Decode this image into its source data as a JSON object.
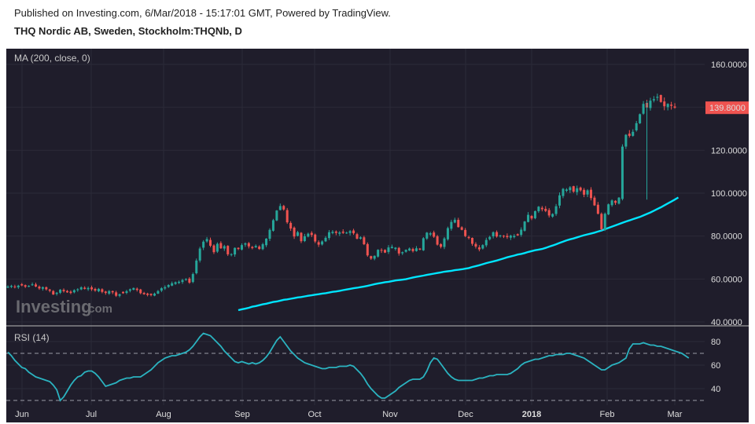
{
  "header": {
    "published": "Published on Investing.com, 6/Mar/2018 - 15:17:01 GMT, Powered by TradingView.",
    "instrument": "THQ Nordic AB, Sweden, Stockholm:THQNb, D"
  },
  "logo": {
    "brand": "Investing",
    "suffix": ".com"
  },
  "colors": {
    "background": "#1f1d2b",
    "grid": "#2b2a38",
    "up": "#26a69a",
    "down": "#ef5350",
    "ma_line": "#00e5ff",
    "rsi_line": "#2bb3c0",
    "last_price_badge": "#ef5350"
  },
  "chart_data": [
    {
      "type": "candlestick",
      "indicator_label": "MA (200, close, 0)",
      "price_axis_ticks": [
        "160.0000",
        "140.0000",
        "120.0000",
        "100.0000",
        "80.0000",
        "60.0000",
        "40.0000"
      ],
      "ylim": [
        40,
        162
      ],
      "last_price": 139.8,
      "last_price_label": "139.8000",
      "grid": true,
      "time_axis_labels": [
        "Jun",
        "Jul",
        "Aug",
        "Sep",
        "Oct",
        "Nov",
        "Dec",
        "2018",
        "Feb",
        "Mar"
      ],
      "series": [
        {
          "name": "THQNb",
          "kind": "ohlc",
          "closes": [
            56.5,
            56.8,
            56.2,
            56.9,
            57,
            56.4,
            56.8,
            57.5,
            56.5,
            55.6,
            56.2,
            55.2,
            54.5,
            52.8,
            53.6,
            55,
            54.3,
            53.8,
            53.5,
            54.8,
            55.2,
            56.1,
            55.4,
            55.8,
            55.2,
            54.6,
            55.4,
            54,
            53.5,
            54.4,
            53.8,
            52.2,
            52.9,
            53.4,
            54.3,
            55.2,
            55.8,
            54.9,
            53.4,
            52.9,
            52.6,
            52.5,
            53.2,
            54.4,
            55.7,
            56.2,
            57.2,
            58,
            58.5,
            58.7,
            59.5,
            59.9,
            58.3,
            62.3,
            68.6,
            74.2,
            77.4,
            78.6,
            75.5,
            72.5,
            76.4,
            74.3,
            75.3,
            71.5,
            71.6,
            74.5,
            74,
            75.8,
            76.6,
            75.2,
            74.4,
            75.4,
            74,
            76.2,
            78.8,
            82.9,
            87.4,
            91.9,
            94,
            92.4,
            86.4,
            83.5,
            79.8,
            81.8,
            77.6,
            79.9,
            81.1,
            80.5,
            77.5,
            76,
            77.5,
            79.2,
            81.8,
            82,
            81.5,
            81.7,
            81.5,
            81.6,
            82.3,
            81.3,
            78.8,
            79.4,
            76.2,
            71,
            69.5,
            70.8,
            73.6,
            73.2,
            72.3,
            74.7,
            75,
            74.6,
            71.9,
            72.5,
            73.6,
            74.2,
            73,
            74.3,
            73.7,
            79,
            81.6,
            81.3,
            79.7,
            76,
            75,
            78.9,
            83.7,
            86.6,
            87.6,
            84.2,
            82.9,
            80,
            79.1,
            76.4,
            75.1,
            73.8,
            75.8,
            78.2,
            79.6,
            81.8,
            79.8,
            80.3,
            79.8,
            79.5,
            80.2,
            80.1,
            80.3,
            83,
            86.8,
            89.9,
            88.2,
            91.6,
            93.7,
            92.5,
            91.7,
            89.6,
            90.3,
            93.9,
            99,
            102,
            101.7,
            102.7,
            100.7,
            102.3,
            101.3,
            99.3,
            101.3,
            97.7,
            94.3,
            90.4,
            83.2,
            90.4,
            94.8,
            96.6,
            95.5,
            97.9,
            121.7,
            127.2,
            126.7,
            128.6,
            132.6,
            136.8,
            141.6,
            139.9,
            143.1,
            143.8,
            144.9,
            142.5,
            140.5,
            141.6,
            140.7,
            139.8
          ]
        }
      ]
    },
    {
      "type": "line",
      "kind": "moving_average",
      "series": [
        {
          "name": "MA (200, close, 0)",
          "start_index": 66,
          "values": [
            45.5,
            45.9,
            46.2,
            46.6,
            47.1,
            47.4,
            47.8,
            48.2,
            48.5,
            48.9,
            49.3,
            49.5,
            49.9,
            50.3,
            50.5,
            50.8,
            51.1,
            51.4,
            51.6,
            51.9,
            52.2,
            52.4,
            52.7,
            52.9,
            53.2,
            53.4,
            53.7,
            54,
            54.2,
            54.5,
            54.8,
            55.1,
            55.4,
            55.7,
            55.9,
            56.2,
            56.5,
            56.8,
            57.2,
            57.6,
            57.9,
            58.2,
            58.5,
            58.7,
            59,
            59.3,
            59.5,
            59.7,
            59.9,
            60.3,
            60.7,
            61,
            61.3,
            61.6,
            61.9,
            62.2,
            62.5,
            62.8,
            63.1,
            63.4,
            63.6,
            63.8,
            64.1,
            64.3,
            64.5,
            64.8,
            65.1,
            65.6,
            66,
            66.4,
            66.9,
            67.4,
            67.8,
            68.2,
            68.6,
            69.1,
            69.6,
            70.1,
            70.5,
            70.9,
            71.4,
            71.7,
            72.1,
            72.6,
            73,
            73.4,
            73.7,
            74,
            74.5,
            75.1,
            75.6,
            76.2,
            76.8,
            77.4,
            78,
            78.5,
            78.9,
            79.4,
            79.9,
            80.4,
            80.8,
            81.2,
            81.6,
            82.1,
            82.6,
            83.2,
            83.8,
            84.4,
            85,
            85.6,
            86.2,
            86.8,
            87.3,
            87.9,
            88.4,
            88.9,
            89.6,
            90.3,
            91,
            91.8,
            92.6,
            93.4,
            94.3,
            95.2,
            96.1,
            97,
            98
          ]
        }
      ]
    },
    {
      "type": "line",
      "indicator_label": "RSI (14)",
      "axis_ticks": [
        "80",
        "60",
        "40"
      ],
      "ylim": [
        24,
        86
      ],
      "reference_lines": [
        70,
        30
      ],
      "series": [
        {
          "name": "RSI (14)",
          "values": [
            71,
            68,
            64,
            61,
            58,
            57,
            54,
            52,
            50,
            49,
            48,
            47,
            46,
            43,
            39,
            30,
            33,
            38,
            43,
            47,
            50,
            51,
            54,
            55,
            55,
            53,
            50,
            46,
            42,
            43,
            44,
            45,
            47,
            48,
            49,
            49,
            50,
            50,
            50,
            52,
            54,
            56,
            59,
            62,
            64,
            66,
            67,
            68,
            68,
            69,
            70,
            71,
            73,
            76,
            80,
            84,
            87,
            86,
            85,
            82,
            79,
            76,
            72,
            69,
            66,
            63,
            62,
            63,
            62,
            61,
            62,
            61,
            62,
            64,
            67,
            71,
            76,
            81,
            84,
            80,
            76,
            72,
            69,
            66,
            64,
            62,
            61,
            60,
            59,
            58,
            57,
            57,
            58,
            58,
            58,
            59,
            59,
            59,
            60,
            59,
            56,
            53,
            49,
            44,
            40,
            37,
            34,
            32,
            32,
            34,
            36,
            38,
            41,
            43,
            45,
            47,
            48,
            48,
            48,
            50,
            55,
            62,
            66,
            65,
            61,
            57,
            53,
            50,
            48,
            47,
            47,
            47,
            47,
            47,
            48,
            49,
            49,
            50,
            51,
            51,
            52,
            52,
            52,
            52,
            53,
            55,
            57,
            60,
            62,
            63,
            64,
            65,
            65,
            66,
            67,
            68,
            68,
            69,
            69,
            69,
            70,
            70,
            69,
            68,
            67,
            66,
            64,
            62,
            60,
            58,
            56,
            56,
            58,
            60,
            61,
            62,
            64,
            66,
            74,
            78,
            78,
            78,
            79,
            78,
            77,
            77,
            76,
            76,
            75,
            74,
            73,
            72,
            71,
            70,
            68,
            66
          ]
        }
      ]
    }
  ]
}
